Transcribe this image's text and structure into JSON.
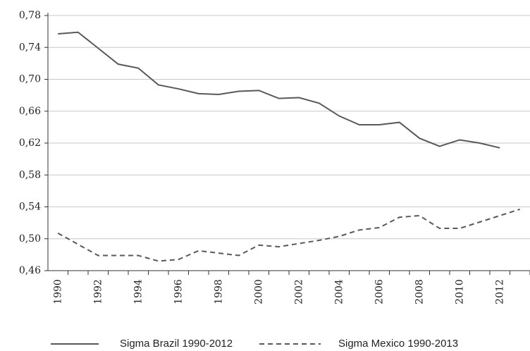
{
  "chart_data": {
    "type": "line",
    "categories": [
      "1990",
      null,
      "1992",
      null,
      "1994",
      null,
      "1996",
      null,
      "1998",
      null,
      "2000",
      null,
      "2002",
      null,
      "2004",
      null,
      "2006",
      null,
      "2008",
      null,
      "2010",
      null,
      "2012",
      null
    ],
    "series": [
      {
        "name": "Sigma Brazil 1990-2012",
        "color": "#595959",
        "dash": "solid",
        "values": [
          0.757,
          0.759,
          0.739,
          0.719,
          0.714,
          0.693,
          0.688,
          0.682,
          0.681,
          0.685,
          0.686,
          0.676,
          0.677,
          0.67,
          0.654,
          0.643,
          0.643,
          0.646,
          0.626,
          0.616,
          0.624,
          0.62,
          0.614,
          null
        ]
      },
      {
        "name": "Sigma Mexico 1990-2013",
        "color": "#595959",
        "dash": "dashed",
        "values": [
          0.507,
          0.493,
          0.479,
          0.479,
          0.479,
          0.472,
          0.474,
          0.485,
          0.482,
          0.479,
          0.492,
          0.49,
          0.494,
          0.498,
          0.503,
          0.511,
          0.514,
          0.527,
          0.529,
          0.513,
          0.513,
          0.521,
          0.529,
          0.537
        ]
      }
    ],
    "ylim": [
      0.46,
      0.78
    ],
    "yticks": [
      {
        "value": 0.46,
        "label": "0,46"
      },
      {
        "value": 0.5,
        "label": "0,50"
      },
      {
        "value": 0.54,
        "label": "0,54"
      },
      {
        "value": 0.58,
        "label": "0,58"
      },
      {
        "value": 0.62,
        "label": "0,62"
      },
      {
        "value": 0.66,
        "label": "0,66"
      },
      {
        "value": 0.7,
        "label": "0,70"
      },
      {
        "value": 0.74,
        "label": "0,74"
      },
      {
        "value": 0.78,
        "label": "0,78"
      }
    ],
    "grid": true,
    "legend": "bottom"
  }
}
